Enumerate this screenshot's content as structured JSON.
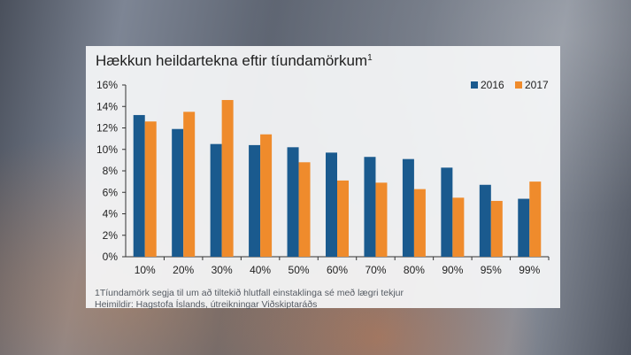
{
  "title_text": "Hækkun heildartekna eftir tíundamörkum",
  "title_sup": "1",
  "footnote_1": "1Tíundamörk segja til um að tiltekið hlutfall einstaklinga sé með lægri tekjur",
  "footnote_2": "Heimildir: Hagstofa Íslands, útreikningar Viðskiptaráðs",
  "colors": {
    "s2016": "#1a5a8e",
    "s2017": "#ef8b2c",
    "axis": "#333333"
  },
  "chart_data": {
    "type": "bar",
    "title": "Hækkun heildartekna eftir tíundamörkum",
    "xlabel": "",
    "ylabel": "",
    "categories": [
      "10%",
      "20%",
      "30%",
      "40%",
      "50%",
      "60%",
      "70%",
      "80%",
      "90%",
      "95%",
      "99%"
    ],
    "series": [
      {
        "name": "2016",
        "values": [
          13.2,
          11.9,
          10.5,
          10.4,
          10.2,
          9.7,
          9.3,
          9.1,
          8.3,
          6.7,
          5.4
        ]
      },
      {
        "name": "2017",
        "values": [
          12.6,
          13.5,
          14.6,
          11.4,
          8.8,
          7.1,
          6.9,
          6.3,
          5.5,
          5.2,
          7.0
        ]
      }
    ],
    "ylim": [
      0,
      16
    ],
    "yticks": [
      "0%",
      "2%",
      "4%",
      "6%",
      "8%",
      "10%",
      "12%",
      "14%",
      "16%"
    ],
    "grid": false,
    "legend_position": "top-right"
  }
}
